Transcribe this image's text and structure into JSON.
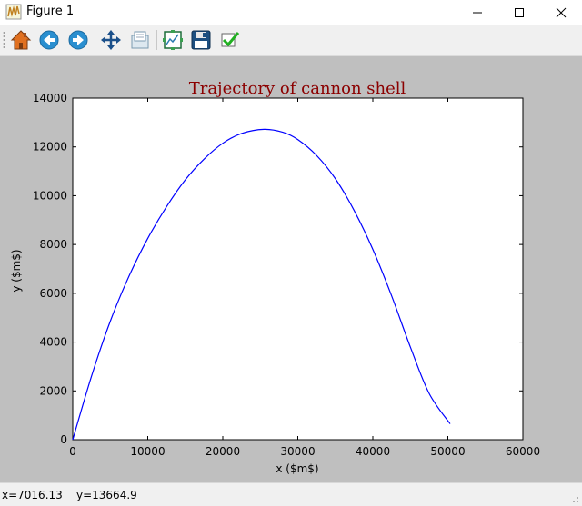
{
  "window": {
    "title": "Figure 1",
    "controls": [
      "minimize",
      "maximize",
      "close"
    ]
  },
  "toolbar": {
    "buttons": [
      {
        "name": "home",
        "icon": "home-icon"
      },
      {
        "name": "back",
        "icon": "back-arrow-icon"
      },
      {
        "name": "forward",
        "icon": "forward-arrow-icon"
      },
      {
        "name": "pan",
        "icon": "move-arrows-icon"
      },
      {
        "name": "zoom",
        "icon": "zoom-rect-icon"
      },
      {
        "name": "subplots",
        "icon": "configure-subplots-icon"
      },
      {
        "name": "save",
        "icon": "floppy-disk-icon"
      },
      {
        "name": "edit",
        "icon": "checkmark-icon"
      }
    ]
  },
  "status": {
    "x_readout": "x=7016.13",
    "y_readout": "y=13664.9"
  },
  "chart_data": {
    "type": "line",
    "title": "Trajectory of cannon shell",
    "title_color": "#8b0000",
    "xlabel": "x ($m$)",
    "ylabel": "y ($m$)",
    "xlim": [
      0,
      60000
    ],
    "ylim": [
      0,
      14000
    ],
    "x_ticks": [
      "0",
      "10000",
      "20000",
      "30000",
      "40000",
      "50000",
      "60000"
    ],
    "y_ticks": [
      "0",
      "2000",
      "4000",
      "6000",
      "8000",
      "10000",
      "12000",
      "14000"
    ],
    "grid": false,
    "series": [
      {
        "color": "#0000ff",
        "x": [
          0,
          2500,
          5000,
          7500,
          10000,
          12500,
          15000,
          17500,
          20000,
          22500,
          25500,
          28000,
          30000,
          32500,
          35000,
          37500,
          40000,
          42500,
          45000,
          47500,
          50300
        ],
        "y": [
          0,
          2600,
          4850,
          6700,
          8250,
          9550,
          10650,
          11500,
          12150,
          12550,
          12720,
          12600,
          12300,
          11650,
          10700,
          9400,
          7800,
          5900,
          3800,
          1900,
          650
        ]
      }
    ]
  }
}
